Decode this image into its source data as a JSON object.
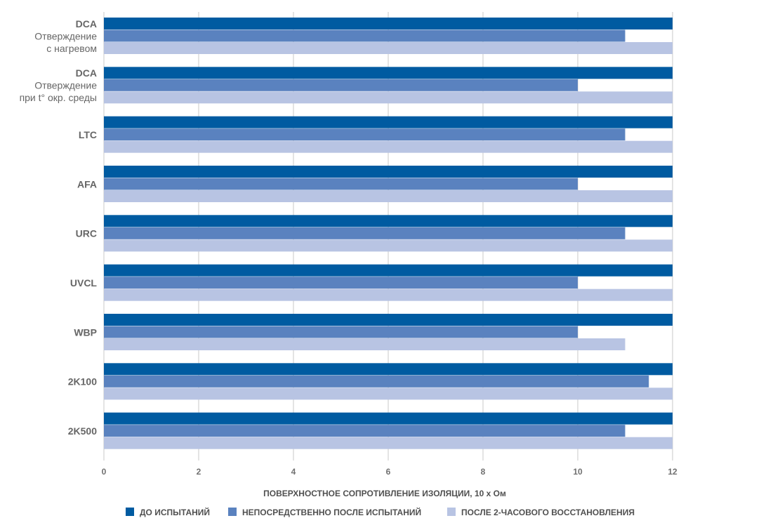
{
  "chart_data": {
    "type": "bar",
    "orientation": "horizontal",
    "categories": [
      [
        "DCA",
        "Отверждение",
        "с нагревом"
      ],
      [
        "DCA",
        "Отверждение",
        "при t° окр. среды"
      ],
      [
        "LTC"
      ],
      [
        "AFA"
      ],
      [
        "URC"
      ],
      [
        "UVCL"
      ],
      [
        "WBP"
      ],
      [
        "2K100"
      ],
      [
        "2K500"
      ]
    ],
    "series": [
      {
        "name": "ДО ИСПЫТАНИЙ",
        "color": "#005ba1",
        "values": [
          12,
          12,
          12,
          12,
          12,
          12,
          12,
          12,
          12
        ]
      },
      {
        "name": "НЕПОСРЕДСТВЕННО ПОСЛЕ ИСПЫТАНИЙ",
        "color": "#5a82bf",
        "values": [
          11,
          10,
          11,
          10,
          11,
          10,
          10,
          11.5,
          11
        ]
      },
      {
        "name": "ПОСЛЕ 2-ЧАСОВОГО ВОССТАНОВЛЕНИЯ",
        "color": "#b8c4e3",
        "values": [
          12,
          12,
          12,
          12,
          12,
          12,
          11,
          12,
          12
        ]
      }
    ],
    "xlim": [
      0,
      12
    ],
    "xticks": [
      "0",
      "2",
      "4",
      "6",
      "8",
      "10",
      "12"
    ],
    "xlabel": "ПОВЕРХНОСТНОЕ СОПРОТИВЛЕНИЕ ИЗОЛЯЦИИ, 10 x Ом",
    "grid": "vertical",
    "legend": "bottom"
  }
}
